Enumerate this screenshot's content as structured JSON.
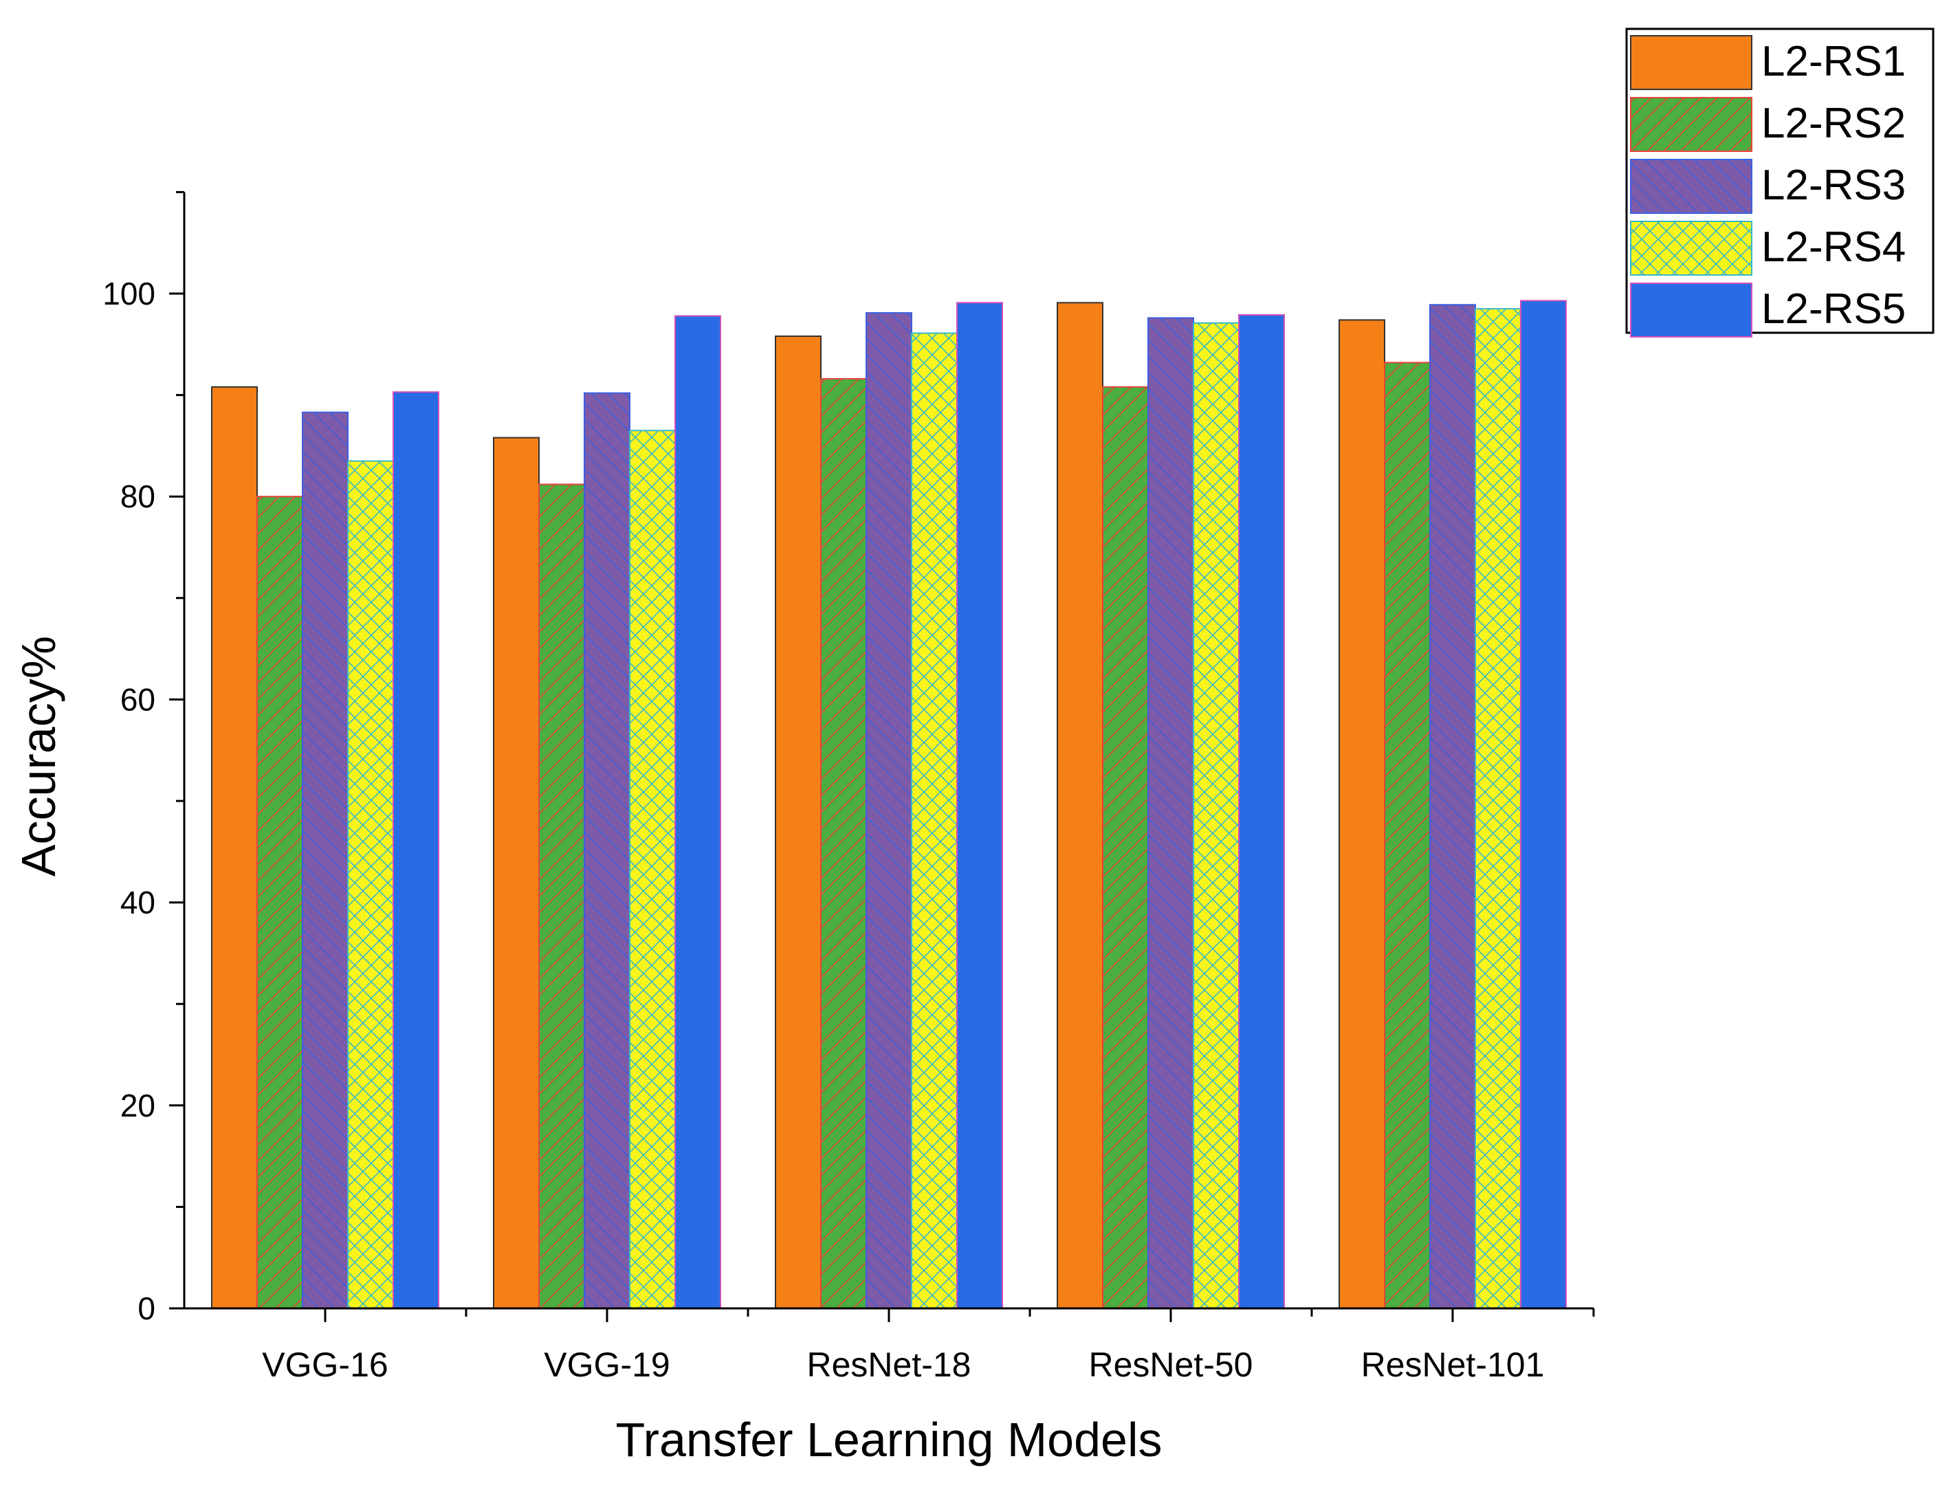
{
  "chart_data": {
    "type": "bar",
    "title": "",
    "xlabel": "Transfer Learning Models",
    "ylabel": "Accuracy%",
    "categories": [
      "VGG-16",
      "VGG-19",
      "ResNet-18",
      "ResNet-50",
      "ResNet-101"
    ],
    "ylim": [
      0,
      110
    ],
    "yticks": [
      "0",
      "20",
      "40",
      "60",
      "80",
      "100"
    ],
    "grid": false,
    "legend_position": "top-right",
    "series": [
      {
        "name": "L2-RS1",
        "values": [
          90.8,
          85.8,
          95.8,
          99.1,
          97.4
        ],
        "color": "#F58017",
        "pattern": "solid"
      },
      {
        "name": "L2-RS2",
        "values": [
          80.0,
          81.2,
          91.6,
          90.8,
          93.2
        ],
        "color": "#4BAE3E",
        "pattern": "diag-up",
        "pattern_color": "#E8433A"
      },
      {
        "name": "L2-RS3",
        "values": [
          88.3,
          90.2,
          98.1,
          97.6,
          98.9
        ],
        "color": "#7E5BA8",
        "pattern": "diag-down",
        "pattern_color": "#3B5FE0"
      },
      {
        "name": "L2-RS4",
        "values": [
          83.5,
          86.5,
          96.1,
          97.1,
          98.5
        ],
        "color": "#F9F51C",
        "pattern": "crosshatch",
        "pattern_color": "#39B8C8"
      },
      {
        "name": "L2-RS5",
        "values": [
          90.3,
          97.8,
          99.1,
          97.9,
          99.3
        ],
        "color": "#286BE5",
        "pattern": "solid"
      }
    ]
  }
}
